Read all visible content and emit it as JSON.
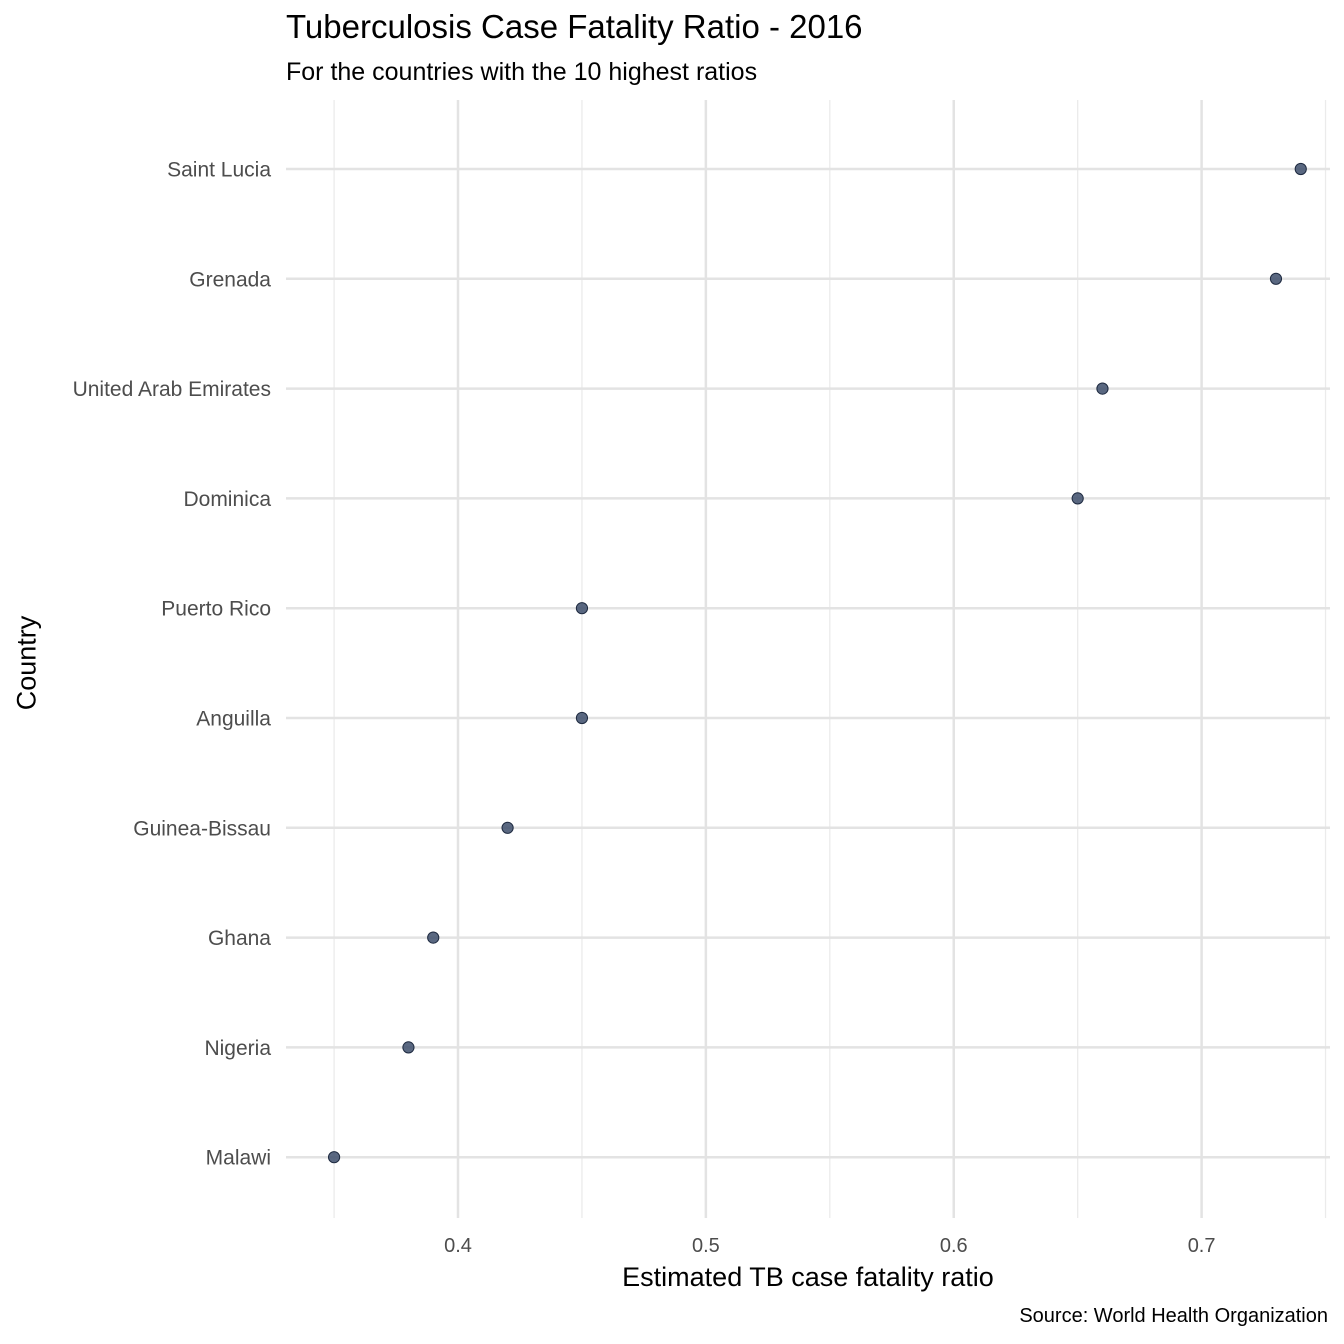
{
  "chart_data": {
    "type": "scatter",
    "title": "Tuberculosis Case Fatality Ratio - 2016",
    "subtitle": "For the countries with the 10 highest ratios",
    "xlabel": "Estimated TB case fatality ratio",
    "ylabel": "Country",
    "caption": "Source: World Health Organization",
    "xlim": [
      0.3306,
      0.7518
    ],
    "x_ticks": [
      0.4,
      0.5,
      0.6,
      0.7
    ],
    "x_tick_labels": [
      "0.4",
      "0.5",
      "0.6",
      "0.7"
    ],
    "grid": true,
    "point_color": "#3d4d6b",
    "categories": [
      "Saint Lucia",
      "Grenada",
      "United Arab Emirates",
      "Dominica",
      "Puerto Rico",
      "Anguilla",
      "Guinea-Bissau",
      "Ghana",
      "Nigeria",
      "Malawi"
    ],
    "values": [
      0.74,
      0.73,
      0.66,
      0.65,
      0.45,
      0.45,
      0.42,
      0.39,
      0.38,
      0.35
    ]
  }
}
